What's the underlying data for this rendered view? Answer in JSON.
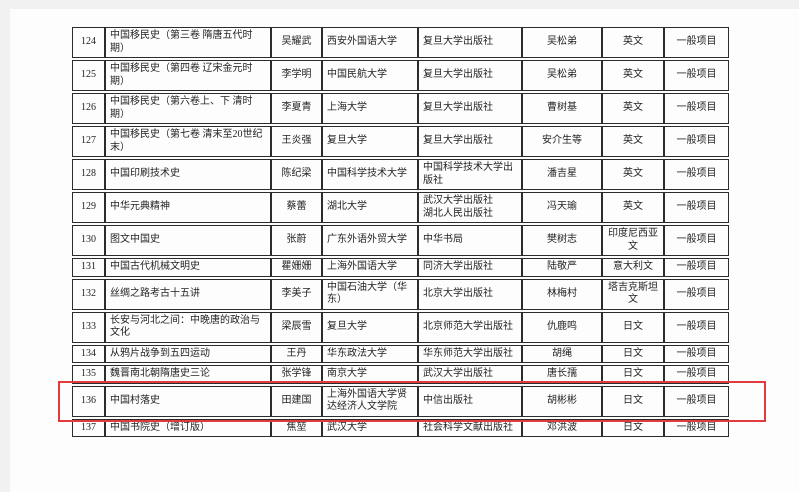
{
  "page": {
    "paper_color": "#fdfdfd",
    "margin_color": "#f1f1f1",
    "border_color": "#2c2c2c",
    "text_color": "#232323"
  },
  "table": {
    "column_keys": [
      "no",
      "title",
      "author",
      "university",
      "publisher",
      "translator",
      "language",
      "type"
    ],
    "rows": [
      {
        "no": "124",
        "title": "中国移民史（第三卷 隋唐五代时期）",
        "author": "吴耀武",
        "university": "西安外国语大学",
        "publisher": "复旦大学出版社",
        "translator": "吴松弟",
        "language": "英文",
        "type": "一般项目"
      },
      {
        "no": "125",
        "title": "中国移民史（第四卷 辽宋金元时期）",
        "author": "李学明",
        "university": "中国民航大学",
        "publisher": "复旦大学出版社",
        "translator": "吴松弟",
        "language": "英文",
        "type": "一般项目"
      },
      {
        "no": "126",
        "title": "中国移民史（第六卷上、下 清时期）",
        "author": "李夏青",
        "university": "上海大学",
        "publisher": "复旦大学出版社",
        "translator": "曹树基",
        "language": "英文",
        "type": "一般项目"
      },
      {
        "no": "127",
        "title": "中国移民史（第七卷 清末至20世纪末）",
        "author": "王炎强",
        "university": "复旦大学",
        "publisher": "复旦大学出版社",
        "translator": "安介生等",
        "language": "英文",
        "type": "一般项目"
      },
      {
        "no": "128",
        "title": "中国印刷技术史",
        "author": "陈纪梁",
        "university": "中国科学技术大学",
        "publisher": "中国科学技术大学出版社",
        "translator": "潘吉星",
        "language": "英文",
        "type": "一般项目"
      },
      {
        "no": "129",
        "title": "中华元典精神",
        "author": "蔡蕾",
        "university": "湖北大学",
        "publisher": "武汉大学出版社\n湖北人民出版社",
        "translator": "冯天瑜",
        "language": "英文",
        "type": "一般项目"
      },
      {
        "no": "130",
        "title": "图文中国史",
        "author": "张蔚",
        "university": "广东外语外贸大学",
        "publisher": "中华书局",
        "translator": "樊树志",
        "language": "印度尼西亚文",
        "type": "一般项目"
      },
      {
        "no": "131",
        "title": "中国古代机械文明史",
        "author": "瞿姗姗",
        "university": "上海外国语大学",
        "publisher": "同济大学出版社",
        "translator": "陆敬严",
        "language": "意大利文",
        "type": "一般项目"
      },
      {
        "no": "132",
        "title": "丝绸之路考古十五讲",
        "author": "李美子",
        "university": "中国石油大学（华东）",
        "publisher": "北京大学出版社",
        "translator": "林梅村",
        "language": "塔吉克斯坦文",
        "type": "一般项目"
      },
      {
        "no": "133",
        "title": "长安与河北之间：中晚唐的政治与文化",
        "author": "梁辰雪",
        "university": "复旦大学",
        "publisher": "北京师范大学出版社",
        "translator": "仇鹿鸣",
        "language": "日文",
        "type": "一般项目"
      },
      {
        "no": "134",
        "title": "从鸦片战争到五四运动",
        "author": "王丹",
        "university": "华东政法大学",
        "publisher": "华东师范大学出版社",
        "translator": "胡绳",
        "language": "日文",
        "type": "一般项目"
      },
      {
        "no": "135",
        "title": "魏晋南北朝隋唐史三论",
        "author": "张学锋",
        "university": "南京大学",
        "publisher": "武汉大学出版社",
        "translator": "唐长孺",
        "language": "日文",
        "type": "一般项目"
      },
      {
        "no": "136",
        "title": "中国村落史",
        "author": "田建国",
        "university": "上海外国语大学贤达经济人文学院",
        "publisher": "中信出版社",
        "translator": "胡彬彬",
        "language": "日文",
        "type": "一般项目"
      },
      {
        "no": "137",
        "title": "中国书院史（增订版）",
        "author": "焦堃",
        "university": "武汉大学",
        "publisher": "社会科学文献出版社",
        "translator": "邓洪波",
        "language": "日文",
        "type": "一般项目"
      }
    ]
  },
  "highlight": {
    "row_no": "136",
    "color": "#e23b3b"
  }
}
